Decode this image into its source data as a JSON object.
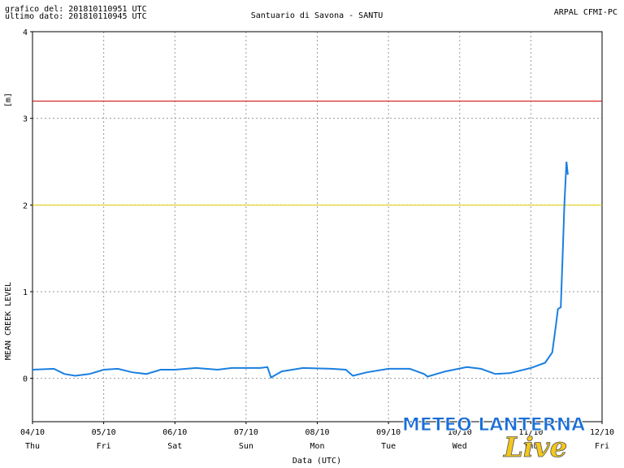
{
  "chart_data": {
    "type": "line",
    "header_left": [
      "grafico del: 201810110951 UTC",
      "ultimo dato: 201810110945 UTC"
    ],
    "title": "Santuario di Savona - SANTU",
    "header_right": "ARPAL CFMI-PC",
    "y_unit": "[m]",
    "ylabel": "MEAN CREEK LEVEL",
    "xlabel": "Data (UTC)",
    "ylim": [
      -0.5,
      4
    ],
    "yticks": [
      0,
      1,
      2,
      3,
      4
    ],
    "xlim": [
      0,
      8
    ],
    "xticks": [
      {
        "value": 0,
        "label": "04/10"
      },
      {
        "value": 1,
        "label": "05/10"
      },
      {
        "value": 2,
        "label": "06/10"
      },
      {
        "value": 3,
        "label": "07/10"
      },
      {
        "value": 4,
        "label": "08/10"
      },
      {
        "value": 5,
        "label": "09/10"
      },
      {
        "value": 6,
        "label": "10/10"
      },
      {
        "value": 7,
        "label": "11/10"
      },
      {
        "value": 8,
        "label": "12/10"
      }
    ],
    "x_weekdays": [
      "Thu",
      "Fri",
      "Sat",
      "Sun",
      "Mon",
      "Tue",
      "Wed",
      "Thu",
      "Fri"
    ],
    "grid": true,
    "thresholds": [
      {
        "value": 3.2,
        "color": "#cc0000"
      },
      {
        "value": 2,
        "color": "#e8cf00"
      }
    ],
    "series": [
      {
        "color": "#1a7fe0",
        "x": [
          0,
          0.3,
          0.45,
          0.6,
          0.8,
          1.0,
          1.2,
          1.4,
          1.6,
          1.8,
          2.0,
          2.3,
          2.6,
          2.8,
          3.2,
          3.3,
          3.35,
          3.5,
          3.8,
          4.2,
          4.4,
          4.5,
          4.7,
          5.0,
          5.3,
          5.5,
          5.55,
          5.8,
          6.1,
          6.3,
          6.5,
          6.7,
          7.0,
          7.2,
          7.3,
          7.35,
          7.38,
          7.42,
          7.45,
          7.47,
          7.5,
          7.52
        ],
        "values": [
          0.1,
          0.11,
          0.05,
          0.03,
          0.05,
          0.1,
          0.11,
          0.07,
          0.05,
          0.1,
          0.1,
          0.12,
          0.1,
          0.12,
          0.12,
          0.13,
          0.01,
          0.08,
          0.12,
          0.11,
          0.1,
          0.03,
          0.07,
          0.11,
          0.11,
          0.05,
          0.02,
          0.08,
          0.13,
          0.11,
          0.05,
          0.06,
          0.12,
          0.18,
          0.3,
          0.6,
          0.8,
          0.82,
          1.5,
          2.0,
          2.5,
          2.35
        ]
      }
    ],
    "watermark": [
      "METEO LANTERNA",
      "Live"
    ]
  }
}
